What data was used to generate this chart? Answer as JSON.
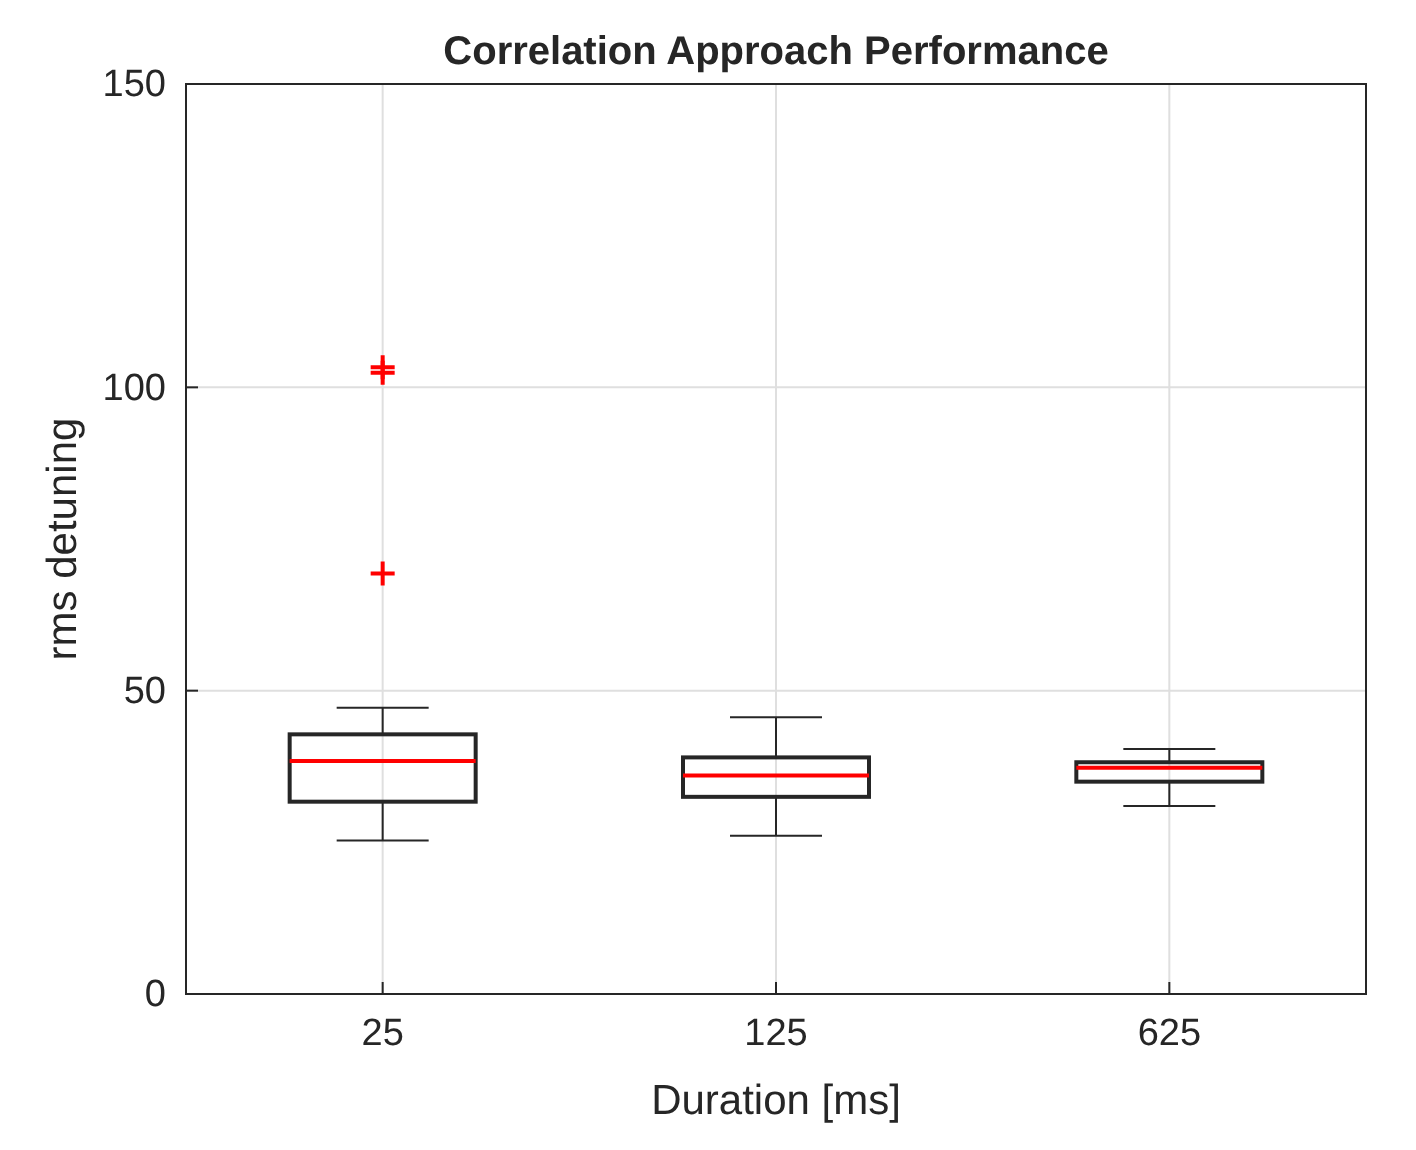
{
  "chart_data": {
    "type": "box",
    "title": "Correlation Approach Performance",
    "xlabel": "Duration [ms]",
    "ylabel": "rms detuning",
    "categories": [
      "25",
      "125",
      "625"
    ],
    "boxes": [
      {
        "low": 25.3,
        "q1": 31.7,
        "median": 38.4,
        "q3": 42.8,
        "high": 47.2,
        "outliers": [
          103.3,
          102.4,
          69.3
        ]
      },
      {
        "low": 26.1,
        "q1": 32.5,
        "median": 36.0,
        "q3": 39.0,
        "high": 45.6
      },
      {
        "low": 31.0,
        "q1": 35.0,
        "median": 37.3,
        "q3": 38.2,
        "high": 40.4
      }
    ],
    "color": "#262626",
    "marker": "cross",
    "ylim": [
      0,
      150
    ],
    "yticks": [
      0,
      50,
      100,
      150
    ],
    "grid": true
  }
}
